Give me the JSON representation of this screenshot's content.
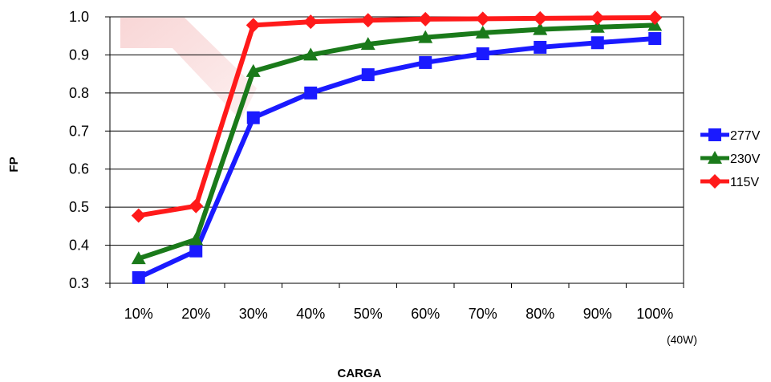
{
  "chart_data": {
    "type": "line",
    "xlabel": "CARGA",
    "ylabel": "FP",
    "categories": [
      "10%",
      "20%",
      "30%",
      "40%",
      "50%",
      "60%",
      "70%",
      "80%",
      "90%",
      "100%"
    ],
    "x_note": "(40W)",
    "yticks": [
      "0.3",
      "0.4",
      "0.5",
      "0.6",
      "0.7",
      "0.8",
      "0.9",
      "1.0"
    ],
    "ylim": [
      0.3,
      1.0
    ],
    "grid": "horizontal",
    "legend_position": "right",
    "series": [
      {
        "name": "277V",
        "color": "#1a1aff",
        "marker": "square",
        "values": [
          0.315,
          0.385,
          0.735,
          0.8,
          0.848,
          0.88,
          0.903,
          0.92,
          0.932,
          0.943
        ]
      },
      {
        "name": "230V",
        "color": "#1a7a1a",
        "marker": "triangle",
        "values": [
          0.365,
          0.415,
          0.857,
          0.9,
          0.928,
          0.946,
          0.958,
          0.967,
          0.973,
          0.978
        ]
      },
      {
        "name": "115V",
        "color": "#ff1a1a",
        "marker": "diamond",
        "values": [
          0.478,
          0.503,
          0.978,
          0.987,
          0.991,
          0.994,
          0.995,
          0.996,
          0.997,
          0.998
        ]
      }
    ]
  }
}
